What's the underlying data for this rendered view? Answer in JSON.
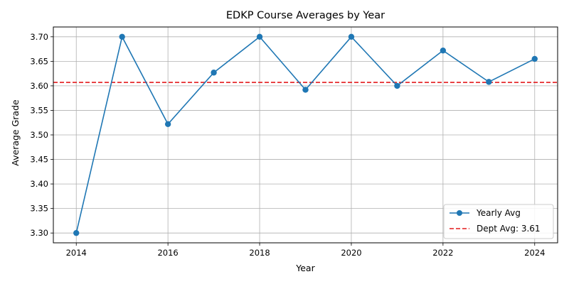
{
  "chart_data": {
    "type": "line",
    "title": "EDKP Course Averages by Year",
    "xlabel": "Year",
    "ylabel": "Average Grade",
    "x": [
      2014,
      2015,
      2016,
      2017,
      2018,
      2019,
      2020,
      2021,
      2022,
      2023,
      2024
    ],
    "series": [
      {
        "name": "Yearly Avg",
        "color": "#1f77b4",
        "marker": "circle",
        "values": [
          3.3,
          3.7,
          3.522,
          3.627,
          3.7,
          3.592,
          3.7,
          3.6,
          3.672,
          3.608,
          3.655
        ]
      }
    ],
    "reference_line": {
      "name": "Dept Avg: 3.61",
      "value": 3.607,
      "color": "#e41a1c",
      "style": "dashed"
    },
    "xlim": [
      2013.5,
      2024.5
    ],
    "ylim": [
      3.28,
      3.72
    ],
    "xticks": [
      2014,
      2016,
      2018,
      2020,
      2022,
      2024
    ],
    "xtick_labels": [
      "2014",
      "2016",
      "2018",
      "2020",
      "2022",
      "2024"
    ],
    "yticks": [
      3.3,
      3.35,
      3.4,
      3.45,
      3.5,
      3.55,
      3.6,
      3.65,
      3.7
    ],
    "ytick_labels": [
      "3.30",
      "3.35",
      "3.40",
      "3.45",
      "3.50",
      "3.55",
      "3.60",
      "3.65",
      "3.70"
    ],
    "grid": true,
    "legend_position": "lower-right"
  }
}
